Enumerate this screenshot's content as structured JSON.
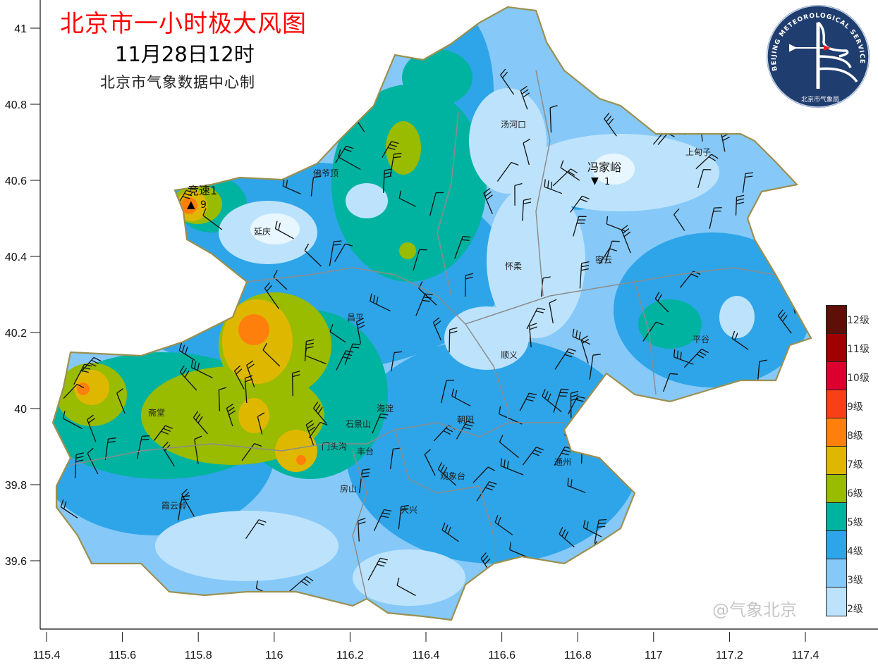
{
  "header": {
    "title": "北京市一小时极大风图",
    "datetime": "11月28日12时",
    "producer": "北京市气象数据中心制"
  },
  "logo": {
    "text_en": "BEIJING METEOROLOGICAL SERVICE",
    "text_cn": "北京市气象局",
    "colors": {
      "background": "#1f3d6e",
      "arrow": "#e02020"
    }
  },
  "axes": {
    "x_ticks": [
      "115.4",
      "115.6",
      "115.8",
      "116",
      "116.2",
      "116.4",
      "116.6",
      "116.8",
      "117",
      "117.2",
      "117.4"
    ],
    "y_ticks": [
      "41",
      "40.8",
      "40.6",
      "40.4",
      "40.2",
      "40",
      "39.8",
      "39.6"
    ]
  },
  "legend": {
    "items": [
      {
        "label": "12级",
        "color": "#5e0f08"
      },
      {
        "label": "11级",
        "color": "#a00000"
      },
      {
        "label": "10级",
        "color": "#dc0030"
      },
      {
        "label": "9级",
        "color": "#f84016"
      },
      {
        "label": "8级",
        "color": "#ff7f0c"
      },
      {
        "label": "7级",
        "color": "#deb800"
      },
      {
        "label": "6级",
        "color": "#99bb00"
      },
      {
        "label": "5级",
        "color": "#00b3a0"
      },
      {
        "label": "4级",
        "color": "#2ea5e8"
      },
      {
        "label": "3级",
        "color": "#86c9f8"
      },
      {
        "label": "2级",
        "color": "#bde3fc"
      }
    ]
  },
  "stations": {
    "jingsu": {
      "name": "竞速1",
      "marker": "▲",
      "value": "9"
    },
    "fengjiayu": {
      "name": "冯家峪",
      "marker": "▼",
      "value": "1"
    }
  },
  "places": [
    "佛爷顶",
    "延庆",
    "昌平",
    "汤河口",
    "上甸子",
    "怀柔",
    "密云",
    "顺义",
    "平谷",
    "斋堂",
    "门头沟",
    "石景山",
    "海淀",
    "朝阳",
    "丰台",
    "观象台",
    "房山",
    "大兴",
    "通州",
    "霞云岭"
  ],
  "watermark": "@气象北京"
}
